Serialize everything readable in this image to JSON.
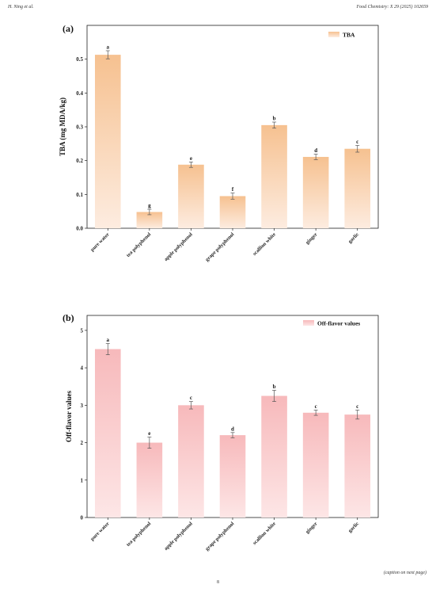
{
  "header": {
    "left": "H. Ning et al.",
    "right": "Food Chemistry: X 29 (2025) 102659"
  },
  "footer": {
    "caption_note": "(caption on next page)",
    "page_number": "8"
  },
  "colors": {
    "tba_top": "#f6c190",
    "tba_bottom": "#fdece0",
    "off_top": "#f7b9bb",
    "off_bottom": "#fde6e6",
    "axis": "#222222"
  },
  "chart_data": [
    {
      "type": "bar",
      "panel_label": "(a)",
      "categories": [
        "pure water",
        "tea polyphenol",
        "apple polyphenol",
        "grape polyphenol",
        "scallion white",
        "ginger",
        "garlic"
      ],
      "series": [
        {
          "name": "TBA",
          "values": [
            0.513,
            0.048,
            0.188,
            0.095,
            0.305,
            0.211,
            0.235
          ],
          "errors": [
            0.012,
            0.008,
            0.008,
            0.009,
            0.009,
            0.008,
            0.01
          ],
          "significance": [
            "a",
            "g",
            "e",
            "f",
            "b",
            "d",
            "c"
          ]
        }
      ],
      "ylabel": "TBA (mg MDA/kg)",
      "xlabel": "",
      "ylim": [
        0,
        0.6
      ],
      "yticks": [
        "0.0",
        "0.1",
        "0.2",
        "0.3",
        "0.4",
        "0.5"
      ],
      "legend_position": "top-right",
      "grid": false
    },
    {
      "type": "bar",
      "panel_label": "(b)",
      "categories": [
        "pure water",
        "tea polyphenol",
        "apple polyphenol",
        "grape polyphenol",
        "scallion white",
        "ginger",
        "garlic"
      ],
      "series": [
        {
          "name": "Off-flavor values",
          "values": [
            4.5,
            2.0,
            3.0,
            2.2,
            3.25,
            2.8,
            2.75
          ],
          "errors": [
            0.15,
            0.15,
            0.1,
            0.07,
            0.15,
            0.07,
            0.12
          ],
          "significance": [
            "a",
            "e",
            "c",
            "d",
            "b",
            "c",
            "c"
          ]
        }
      ],
      "ylabel": "Off-flavor values",
      "xlabel": "",
      "ylim": [
        0,
        5.4
      ],
      "yticks": [
        "0",
        "1",
        "2",
        "3",
        "4",
        "5"
      ],
      "legend_position": "top-right",
      "grid": false
    }
  ]
}
